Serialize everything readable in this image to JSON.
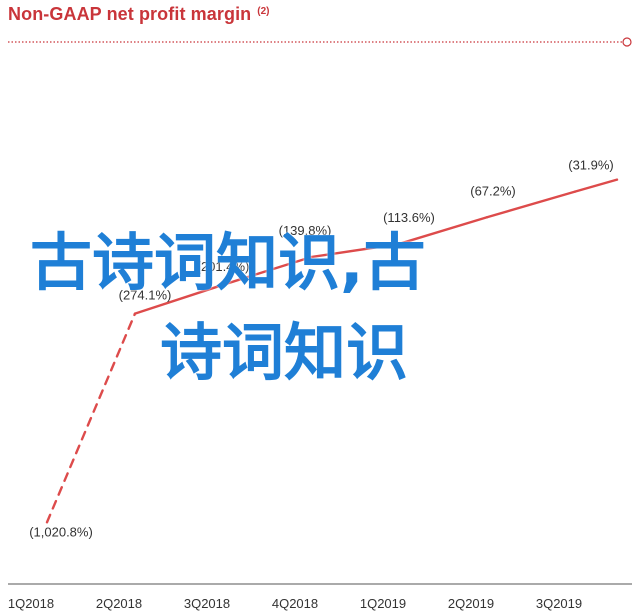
{
  "title": "Non-GAAP net profit margin",
  "title_note": "(2)",
  "overlay": {
    "line1": "古诗词知识,古",
    "line2": "诗词知识"
  },
  "colors": {
    "accent": "#c9353a",
    "line": "#dd4b4b",
    "axis": "#555555",
    "label": "#333333",
    "overlay": "#1f7fd6"
  },
  "chart_data": {
    "type": "line",
    "title": "Non-GAAP net profit margin",
    "categories": [
      "1Q2018",
      "2Q2018",
      "3Q2018",
      "4Q2018",
      "1Q2019",
      "2Q2019",
      "3Q2019"
    ],
    "series": [
      {
        "values": [
          -1020.8,
          -274.1,
          -201.4,
          -139.8,
          -113.6,
          -67.2,
          -31.9
        ],
        "labels": [
          "(1,020.8%)",
          "(274.1%)",
          "(201.4%)",
          "(139.8%)",
          "(113.6%)",
          "(67.2%)",
          "(31.9%)"
        ],
        "dashed_until_index": 1
      }
    ],
    "ylim": [
      -1100,
      0
    ],
    "grid": false,
    "legend": "none"
  }
}
